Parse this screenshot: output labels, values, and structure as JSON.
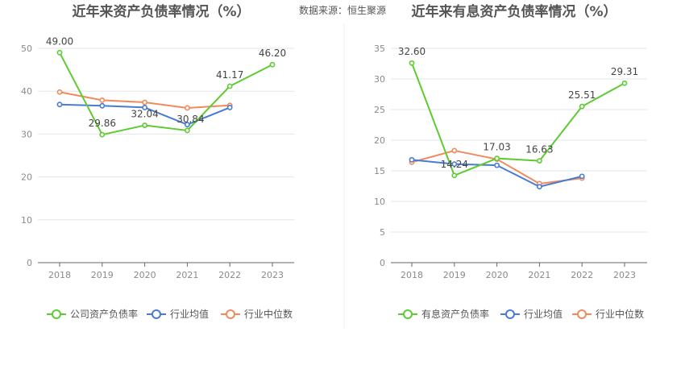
{
  "source_label": "数据来源：恒生聚源",
  "colors": {
    "company": "#5ecb32",
    "avg": "#4a7bd4",
    "median": "#f08a5d"
  },
  "chart_data": [
    {
      "type": "line",
      "title": "近年来资产负债率情况（%）",
      "categories": [
        "2018",
        "2019",
        "2020",
        "2021",
        "2022",
        "2023"
      ],
      "ylim": [
        0,
        50
      ],
      "yticks": [
        0,
        10,
        20,
        30,
        40,
        50
      ],
      "series": [
        {
          "key": "company",
          "name": "公司资产负债率",
          "values": [
            49.0,
            29.86,
            32.04,
            30.84,
            41.17,
            46.2
          ],
          "labels": [
            "49.00",
            "29.86",
            "32.04",
            "30.84",
            "41.17",
            "46.20"
          ]
        },
        {
          "key": "avg",
          "name": "行业均值",
          "values": [
            36.9,
            36.6,
            36.2,
            32.2,
            36.2,
            null
          ]
        },
        {
          "key": "median",
          "name": "行业中位数",
          "values": [
            39.8,
            37.9,
            37.4,
            36.1,
            36.7,
            null
          ]
        }
      ]
    },
    {
      "type": "line",
      "title": "近年来有息资产负债率情况（%）",
      "categories": [
        "2018",
        "2019",
        "2020",
        "2021",
        "2022",
        "2023"
      ],
      "ylim": [
        0,
        35
      ],
      "yticks": [
        0,
        5,
        10,
        15,
        20,
        25,
        30,
        35
      ],
      "series": [
        {
          "key": "company",
          "name": "有息资产负债率",
          "values": [
            32.6,
            14.24,
            17.03,
            16.63,
            25.51,
            29.31
          ],
          "labels": [
            "32.60",
            "14.24",
            "17.03",
            "16.63",
            "25.51",
            "29.31"
          ]
        },
        {
          "key": "avg",
          "name": "行业均值",
          "values": [
            16.8,
            16.1,
            15.9,
            12.4,
            14.1,
            null
          ]
        },
        {
          "key": "median",
          "name": "行业中位数",
          "values": [
            16.4,
            18.3,
            16.9,
            12.9,
            13.8,
            null
          ]
        }
      ]
    }
  ]
}
